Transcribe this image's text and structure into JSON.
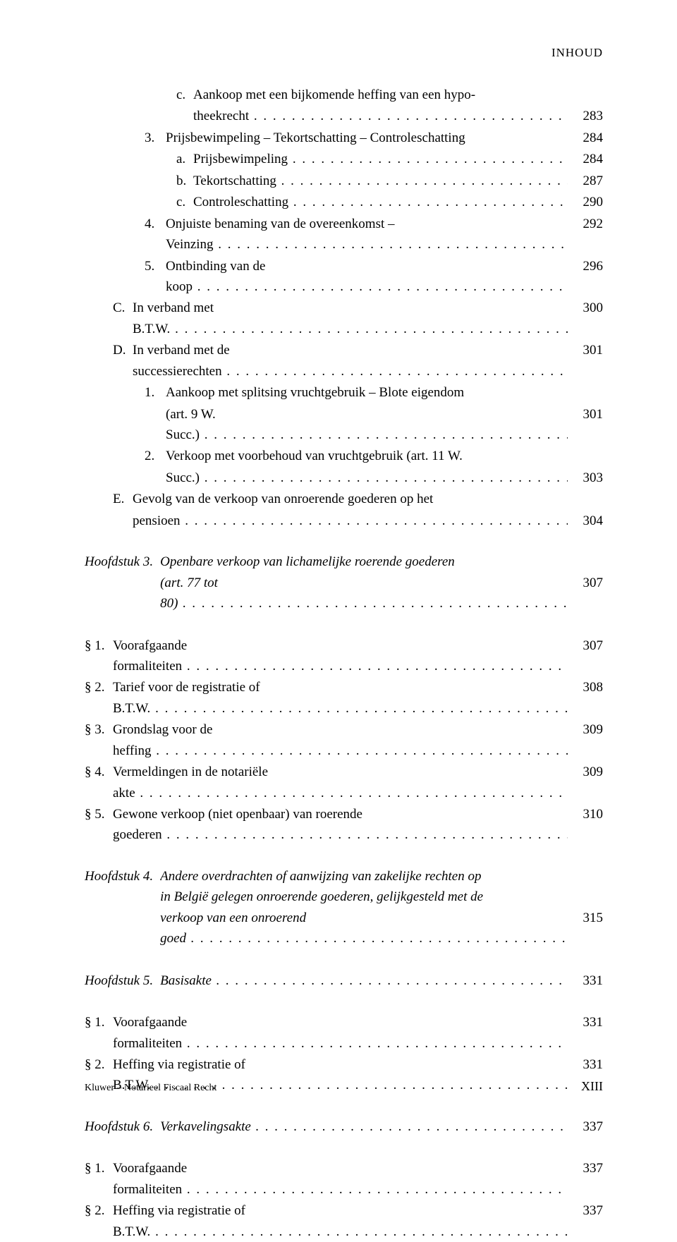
{
  "header": {
    "running": "INHOUD"
  },
  "rows": [
    {
      "type": "entry",
      "indent": 3,
      "labelClass": "w-letter-sm",
      "label": "c.",
      "lines": [
        "Aankoop met een bijkomende heffing van een hypo-",
        "theekrecht"
      ],
      "page": "283"
    },
    {
      "type": "entry",
      "indent": 2,
      "labelClass": "w-num",
      "label": "3.",
      "lines": [
        "Prijsbewimpeling – Tekortschatting – Controleschatting"
      ],
      "noDots": true,
      "page": "284"
    },
    {
      "type": "entry",
      "indent": 3,
      "labelClass": "w-letter-sm",
      "label": "a.",
      "lines": [
        "Prijsbewimpeling"
      ],
      "page": "284"
    },
    {
      "type": "entry",
      "indent": 3,
      "labelClass": "w-letter-sm",
      "label": "b.",
      "lines": [
        "Tekortschatting"
      ],
      "page": "287"
    },
    {
      "type": "entry",
      "indent": 3,
      "labelClass": "w-letter-sm",
      "label": "c.",
      "lines": [
        "Controleschatting"
      ],
      "page": "290"
    },
    {
      "type": "entry",
      "indent": 2,
      "labelClass": "w-num",
      "label": "4.",
      "lines": [
        "Onjuiste benaming van de overeenkomst – Veinzing"
      ],
      "page": "292"
    },
    {
      "type": "entry",
      "indent": 2,
      "labelClass": "w-num",
      "label": "5.",
      "lines": [
        "Ontbinding van de koop"
      ],
      "page": "296"
    },
    {
      "type": "entry",
      "indent": 1,
      "labelClass": "w-letter",
      "label": "C.",
      "lines": [
        "In verband met B.T.W."
      ],
      "page": "300"
    },
    {
      "type": "entry",
      "indent": 1,
      "labelClass": "w-letter",
      "label": "D.",
      "lines": [
        "In verband met de successierechten"
      ],
      "page": "301"
    },
    {
      "type": "entry",
      "indent": 2,
      "labelClass": "w-num",
      "label": "1.",
      "lines": [
        "Aankoop met splitsing vruchtgebruik – Blote eigendom",
        "(art. 9 W. Succ.)"
      ],
      "page": "301"
    },
    {
      "type": "entry",
      "indent": 2,
      "labelClass": "w-num",
      "label": "2.",
      "lines": [
        "Verkoop met voorbehoud van vruchtgebruik (art. 11 W.",
        "Succ.)"
      ],
      "page": "303"
    },
    {
      "type": "entry",
      "indent": 1,
      "labelClass": "w-letter",
      "label": "E.",
      "lines": [
        "Gevolg van de verkoop van onroerende goederen op het",
        "pensioen"
      ],
      "page": "304"
    },
    {
      "type": "gap"
    },
    {
      "type": "chapter",
      "label": "Hoofdstuk 3.",
      "lines": [
        "Openbare verkoop van lichamelijke roerende goederen",
        "(art. 77 tot 80)"
      ],
      "page": "307"
    },
    {
      "type": "gap"
    },
    {
      "type": "entry",
      "indent": 0,
      "labelClass": "w-sec",
      "label": "§ 1.",
      "lines": [
        "Voorafgaande formaliteiten"
      ],
      "page": "307"
    },
    {
      "type": "entry",
      "indent": 0,
      "labelClass": "w-sec",
      "label": "§ 2.",
      "lines": [
        "Tarief voor de registratie of B.T.W."
      ],
      "page": "308"
    },
    {
      "type": "entry",
      "indent": 0,
      "labelClass": "w-sec",
      "label": "§ 3.",
      "lines": [
        "Grondslag voor de heffing"
      ],
      "page": "309"
    },
    {
      "type": "entry",
      "indent": 0,
      "labelClass": "w-sec",
      "label": "§ 4.",
      "lines": [
        "Vermeldingen in de notariële akte"
      ],
      "page": "309"
    },
    {
      "type": "entry",
      "indent": 0,
      "labelClass": "w-sec",
      "label": "§ 5.",
      "lines": [
        "Gewone verkoop (niet openbaar) van roerende goederen"
      ],
      "page": "310"
    },
    {
      "type": "gap"
    },
    {
      "type": "chapter",
      "label": "Hoofdstuk 4.",
      "lines": [
        "Andere overdrachten of aanwijzing van zakelijke rechten op",
        "in België gelegen onroerende goederen, gelijkgesteld met de",
        "verkoop van een onroerend goed"
      ],
      "page": "315"
    },
    {
      "type": "gap"
    },
    {
      "type": "chapter",
      "label": "Hoofdstuk 5.",
      "lines": [
        "Basisakte"
      ],
      "dotsOnSingle": true,
      "page": "331"
    },
    {
      "type": "gap"
    },
    {
      "type": "entry",
      "indent": 0,
      "labelClass": "w-sec",
      "label": "§ 1.",
      "lines": [
        "Voorafgaande formaliteiten"
      ],
      "page": "331"
    },
    {
      "type": "entry",
      "indent": 0,
      "labelClass": "w-sec",
      "label": "§ 2.",
      "lines": [
        "Heffing via registratie of B.T.W."
      ],
      "page": "331"
    },
    {
      "type": "gap"
    },
    {
      "type": "chapter",
      "label": "Hoofdstuk 6.",
      "lines": [
        "Verkavelingsakte"
      ],
      "dotsOnSingle": true,
      "page": "337"
    },
    {
      "type": "gap"
    },
    {
      "type": "entry",
      "indent": 0,
      "labelClass": "w-sec",
      "label": "§ 1.",
      "lines": [
        "Voorafgaande formaliteiten"
      ],
      "page": "337"
    },
    {
      "type": "entry",
      "indent": 0,
      "labelClass": "w-sec",
      "label": "§ 2.",
      "lines": [
        "Heffing via registratie of B.T.W."
      ],
      "page": "337"
    }
  ],
  "footer": {
    "left": "Kluwer – Notarieel Fiscaal Recht",
    "right": "XIII"
  }
}
